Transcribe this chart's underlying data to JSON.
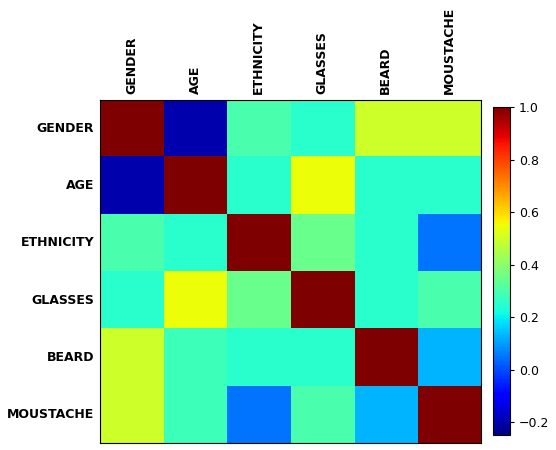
{
  "labels": [
    "GENDER",
    "AGE",
    "ETHNICITY",
    "GLASSES",
    "BEARD",
    "MOUSTACHE"
  ],
  "matrix": [
    [
      1.0,
      -0.2,
      0.3,
      0.25,
      0.5,
      0.5
    ],
    [
      -0.2,
      1.0,
      0.25,
      0.55,
      0.25,
      0.25
    ],
    [
      0.3,
      0.25,
      1.0,
      0.35,
      0.25,
      0.05
    ],
    [
      0.25,
      0.55,
      0.35,
      1.0,
      0.25,
      0.3
    ],
    [
      0.5,
      0.28,
      0.25,
      0.25,
      1.0,
      0.13
    ],
    [
      0.5,
      0.28,
      0.05,
      0.3,
      0.13,
      1.0
    ]
  ],
  "cmap": "jet",
  "vmin": -0.25,
  "vmax": 1.0,
  "colorbar_ticks": [
    1.0,
    0.8,
    0.6,
    0.4,
    0.2,
    0.0,
    -0.2
  ],
  "figsize": [
    5.56,
    4.5
  ],
  "dpi": 100,
  "xlabel_fontsize": 9,
  "ylabel_fontsize": 9,
  "colorbar_fontsize": 9
}
